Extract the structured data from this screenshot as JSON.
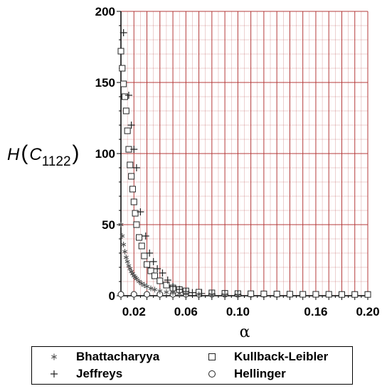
{
  "chart_data": {
    "type": "scatter",
    "title": "",
    "ylabel": {
      "main": "H",
      "open": "(",
      "var": "C",
      "sub": "1122",
      "close": ")"
    },
    "xlabel": "α",
    "xlim": [
      0.01,
      0.2
    ],
    "ylim": [
      0,
      200
    ],
    "x_ticks": [
      0.02,
      0.06,
      0.1,
      0.16,
      0.2
    ],
    "x_tick_labels": [
      "0.02",
      "0.06",
      "0.10",
      "0.16",
      "0.20"
    ],
    "y_ticks": [
      0,
      50,
      100,
      150,
      200
    ],
    "y_tick_labels": [
      "0",
      "50",
      "100",
      "150",
      "200"
    ],
    "grid": true,
    "grid_color": "#b03030",
    "legend_position": "bottom",
    "series": [
      {
        "name": "Bhattacharyya",
        "marker": "star",
        "x": [
          0.01,
          0.011,
          0.012,
          0.013,
          0.014,
          0.015,
          0.016,
          0.017,
          0.018,
          0.019,
          0.02,
          0.021,
          0.022,
          0.024,
          0.026,
          0.028,
          0.03,
          0.033,
          0.036,
          0.04,
          0.045,
          0.05,
          0.055,
          0.06,
          0.07,
          0.08,
          0.09,
          0.1
        ],
        "y": [
          50,
          42,
          36,
          31,
          27,
          24,
          21,
          19,
          17,
          15.5,
          14,
          13,
          12,
          10,
          8.5,
          7.5,
          6.5,
          5.2,
          4.3,
          3.3,
          2.5,
          2,
          1.6,
          1.3,
          1,
          0.8,
          0.6,
          0.5
        ]
      },
      {
        "name": "Kullback-Leibler",
        "marker": "square",
        "x": [
          0.01,
          0.011,
          0.012,
          0.013,
          0.014,
          0.015,
          0.016,
          0.017,
          0.018,
          0.019,
          0.02,
          0.021,
          0.022,
          0.024,
          0.026,
          0.028,
          0.03,
          0.033,
          0.036,
          0.04,
          0.045,
          0.05,
          0.055,
          0.06,
          0.07,
          0.08,
          0.09,
          0.1,
          0.11,
          0.12,
          0.13,
          0.14,
          0.15,
          0.16,
          0.17,
          0.18,
          0.19,
          0.2
        ],
        "y": [
          172,
          160,
          149,
          140,
          130,
          116,
          103,
          92,
          84,
          75,
          66,
          58,
          50,
          41,
          35,
          28,
          22,
          17.5,
          14,
          10.5,
          7.5,
          5.5,
          4.3,
          3.4,
          2.5,
          2,
          1.7,
          1.5,
          1.4,
          1.3,
          1.2,
          1.1,
          1,
          1,
          1,
          0.9,
          0.9,
          0.9
        ]
      },
      {
        "name": "Jeffreys",
        "marker": "plus",
        "x": [
          0.012,
          0.016,
          0.018,
          0.02,
          0.022,
          0.025,
          0.029,
          0.032,
          0.035,
          0.038,
          0.042,
          0.046,
          0.05,
          0.055,
          0.06,
          0.065,
          0.072,
          0.08,
          0.09,
          0.1
        ],
        "y": [
          185,
          141,
          120,
          103,
          90,
          59,
          42,
          30,
          24,
          19,
          16,
          11,
          6.5,
          4.5,
          3,
          2.2,
          1.6,
          1.2,
          1,
          0.8
        ]
      },
      {
        "name": "Hellinger",
        "marker": "circle",
        "x": [
          0.01,
          0.02,
          0.03,
          0.04,
          0.05,
          0.06,
          0.07,
          0.08,
          0.09,
          0.1,
          0.11,
          0.12,
          0.13,
          0.14,
          0.15,
          0.16,
          0.17,
          0.18,
          0.19,
          0.2
        ],
        "y": [
          1,
          1,
          1,
          1,
          1,
          1,
          1,
          1,
          1,
          1,
          1,
          1,
          1,
          1,
          1,
          1,
          1,
          1,
          1,
          1
        ]
      }
    ]
  },
  "legend": {
    "items": [
      {
        "label": "Bhattacharyya",
        "marker": "star"
      },
      {
        "label": "Kullback-Leibler",
        "marker": "square"
      },
      {
        "label": "Jeffreys",
        "marker": "plus"
      },
      {
        "label": "Hellinger",
        "marker": "circle"
      }
    ]
  }
}
